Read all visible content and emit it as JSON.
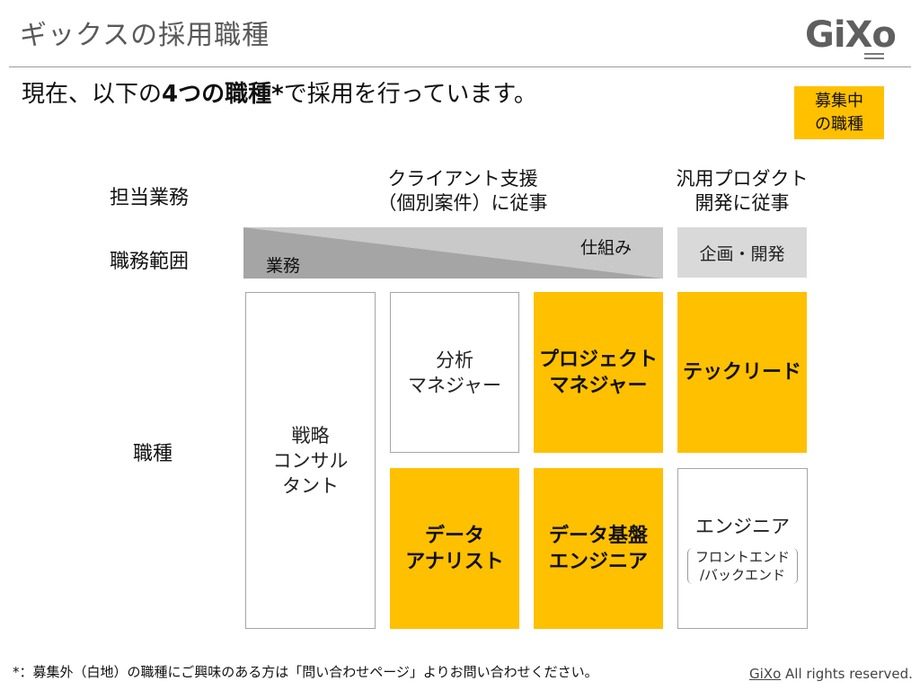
{
  "header": {
    "title": "ギックスの採用職種",
    "logo_text": "GiXo"
  },
  "subtitle": {
    "prefix": "現在、以下の",
    "bold": "4つの職種*",
    "suffix": "で採用を行っています。"
  },
  "legend": {
    "line1": "募集中",
    "line2": "の職種",
    "color": "#ffc000"
  },
  "row_labels": {
    "duties": "担当業務",
    "scope": "職務範囲",
    "roles": "職種"
  },
  "column_headers": {
    "client_line1": "クライアント支援",
    "client_line2": "（個別案件）に従事",
    "product_line1": "汎用プロダクト",
    "product_line2": "開発に従事"
  },
  "scope": {
    "business": "業務",
    "mechanism": "仕組み",
    "planning": "企画・開発"
  },
  "roles": {
    "strategy_line1": "戦略",
    "strategy_line2": "コンサル",
    "strategy_line3": "タント",
    "analysis_line1": "分析",
    "analysis_line2": "マネジャー",
    "pm_line1": "プロジェクト",
    "pm_line2": "マネジャー",
    "techlead": "テックリード",
    "analyst_line1": "データ",
    "analyst_line2": "アナリスト",
    "dataeng_line1": "データ基盤",
    "dataeng_line2": "エンジニア",
    "engineer": "エンジニア",
    "engineer_note_line1": "フロントエンド",
    "engineer_note_line2": "/バックエンド"
  },
  "footer": {
    "footnote": "*：募集外（白地）の職種にご興味のある方は「問い合わせページ」よりお問い合わせください。",
    "copyright_brand": "GiXo",
    "copyright_rest": " All rights reserved."
  }
}
